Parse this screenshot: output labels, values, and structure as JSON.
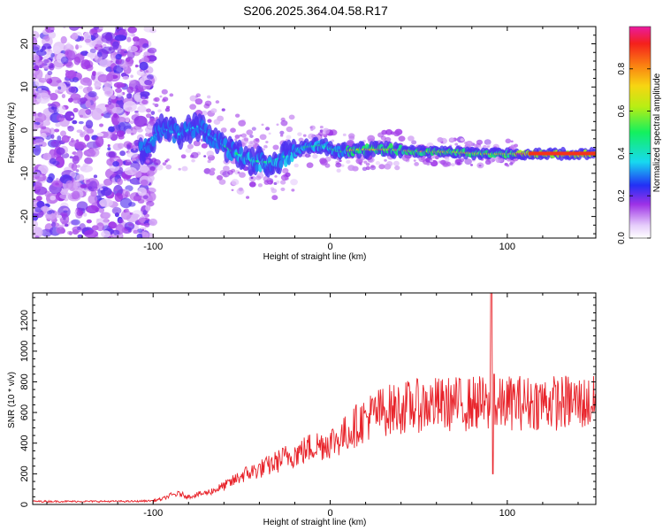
{
  "figure": {
    "title": "S206.2025.364.04.58.R17"
  },
  "chart_data": [
    {
      "type": "heatmap",
      "title": "S206.2025.364.04.58.R17",
      "xlabel": "Height of straight line (km)",
      "ylabel": "Frequency (Hz)",
      "xlim": [
        -168,
        150
      ],
      "ylim": [
        -25,
        24
      ],
      "xticks": [
        -100,
        0,
        100
      ],
      "yticks": [
        -20,
        -10,
        0,
        10,
        20
      ],
      "colorbar": {
        "label": "Normalized spectral amplitude",
        "range": [
          0,
          1
        ],
        "ticks": [
          "0.0",
          "0.2",
          "0.4",
          "0.6",
          "0.8"
        ]
      },
      "ridge": {
        "description_points_x": [
          -105,
          -95,
          -85,
          -75,
          -65,
          -55,
          -45,
          -35,
          -25,
          -15,
          -5,
          5,
          15,
          25,
          35,
          45,
          55,
          65,
          75,
          85,
          95,
          105,
          115,
          125,
          135,
          145,
          150
        ],
        "description_points_y": [
          -4.5,
          0.5,
          -1,
          1,
          -2,
          -5,
          -7,
          -7.5,
          -6,
          -4,
          -3.5,
          -5,
          -4.5,
          -4.5,
          -4.5,
          -4.8,
          -5,
          -5,
          -5.2,
          -5.5,
          -5.5,
          -5.5,
          -5.5,
          -5.5,
          -5.5,
          -5.5,
          -5.5
        ]
      }
    },
    {
      "type": "line",
      "xlabel": "Height of straight line (km)",
      "ylabel": "SNR (10 * v/v)",
      "xlim": [
        -168,
        150
      ],
      "ylim": [
        0,
        1380
      ],
      "xticks": [
        -100,
        0,
        100
      ],
      "yticks": [
        0,
        200,
        400,
        600,
        800,
        1000,
        1200
      ],
      "series": [
        {
          "name": "SNR",
          "color": "#e8232a",
          "x": [
            -168,
            -150,
            -130,
            -110,
            -100,
            -95,
            -90,
            -85,
            -80,
            -75,
            -70,
            -65,
            -60,
            -55,
            -50,
            -45,
            -40,
            -35,
            -30,
            -25,
            -20,
            -15,
            -10,
            -5,
            0,
            5,
            10,
            15,
            20,
            25,
            30,
            35,
            40,
            45,
            50,
            55,
            60,
            65,
            70,
            75,
            80,
            85,
            88,
            90,
            92,
            94,
            96,
            100,
            105,
            110,
            115,
            120,
            125,
            130,
            135,
            140,
            145,
            150
          ],
          "values": [
            20,
            20,
            20,
            20,
            25,
            35,
            60,
            70,
            50,
            65,
            75,
            95,
            120,
            150,
            190,
            210,
            230,
            250,
            280,
            310,
            330,
            350,
            380,
            390,
            410,
            430,
            470,
            520,
            560,
            590,
            610,
            620,
            630,
            640,
            645,
            650,
            655,
            650,
            660,
            650,
            660,
            665,
            640,
            600,
            580,
            610,
            650,
            660,
            670,
            660,
            665,
            670,
            665,
            660,
            670,
            665,
            660,
            660
          ]
        }
      ],
      "annotations": [
        {
          "label": "spike",
          "x": 91,
          "value": 1380
        },
        {
          "label": "dip",
          "x": 91,
          "value": 200
        }
      ]
    }
  ]
}
